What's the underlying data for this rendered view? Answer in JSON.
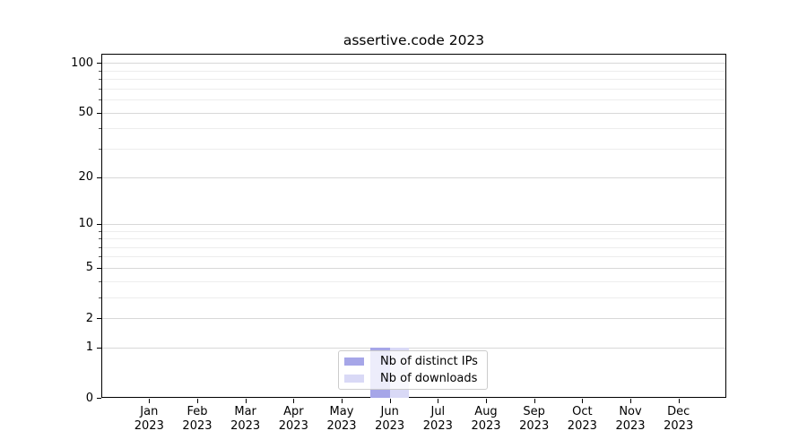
{
  "title": "assertive.code 2023",
  "legend": {
    "items": [
      {
        "label": "Nb of distinct IPs",
        "color": "#a6a6e8"
      },
      {
        "label": "Nb of downloads",
        "color": "#d9d9f6"
      }
    ]
  },
  "chart_data": {
    "type": "bar",
    "title": "assertive.code 2023",
    "categories": [
      "Jan 2023",
      "Feb 2023",
      "Mar 2023",
      "Apr 2023",
      "May 2023",
      "Jun 2023",
      "Jul 2023",
      "Aug 2023",
      "Sep 2023",
      "Oct 2023",
      "Nov 2023",
      "Dec 2023"
    ],
    "x_tick_months": [
      "Jan",
      "Feb",
      "Mar",
      "Apr",
      "May",
      "Jun",
      "Jul",
      "Aug",
      "Sep",
      "Oct",
      "Nov",
      "Dec"
    ],
    "x_tick_year": "2023",
    "series": [
      {
        "name": "Nb of distinct IPs",
        "color": "#a6a6e8",
        "values": [
          0,
          0,
          0,
          0,
          0,
          1,
          0,
          0,
          0,
          0,
          0,
          0
        ]
      },
      {
        "name": "Nb of downloads",
        "color": "#d9d9f6",
        "values": [
          0,
          0,
          0,
          0,
          0,
          1,
          0,
          0,
          0,
          0,
          0,
          0
        ]
      }
    ],
    "xlabel": "",
    "ylabel": "",
    "yscale": "log1p",
    "ylim": [
      0,
      114
    ],
    "y_major_ticks": [
      100,
      50,
      20,
      10,
      5,
      2,
      1,
      0
    ],
    "y_minor_ticks": [
      90,
      80,
      70,
      60,
      40,
      30,
      9,
      8,
      7,
      6,
      4,
      3
    ],
    "grid": "horizontal",
    "legend_position": "lower center inside plot",
    "colors": {
      "major_grid": "#d8d8d8",
      "minor_grid": "#ededed",
      "spine": "#000000"
    }
  }
}
